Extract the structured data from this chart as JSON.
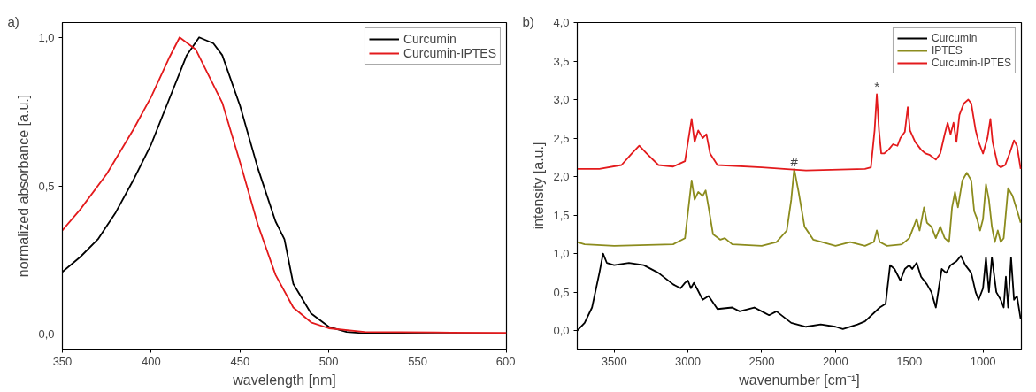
{
  "chart_data": [
    {
      "type": "line",
      "xlabel": "wavelength [nm]",
      "ylabel": "normalized absorbance [a.u.]",
      "annotations": [
        "a)"
      ],
      "xlim": [
        350,
        600
      ],
      "ylim": [
        -0.05,
        1.05
      ],
      "xticks": [
        350,
        400,
        450,
        500,
        550,
        600
      ],
      "yticks": [
        {
          "value": 0.0,
          "label": "0,0"
        },
        {
          "value": 0.5,
          "label": "0,5"
        },
        {
          "value": 1.0,
          "label": "1,0"
        }
      ],
      "grid": false,
      "legend": "top right",
      "series": [
        {
          "name": "Curcumin",
          "color": "#000000",
          "x": [
            350,
            360,
            370,
            380,
            390,
            400,
            410,
            420,
            427,
            435,
            440,
            450,
            460,
            470,
            475,
            480,
            490,
            500,
            510,
            520,
            560,
            600
          ],
          "values": [
            0.21,
            0.26,
            0.32,
            0.41,
            0.52,
            0.64,
            0.79,
            0.94,
            1.0,
            0.98,
            0.94,
            0.77,
            0.56,
            0.38,
            0.32,
            0.17,
            0.07,
            0.025,
            0.008,
            0.003,
            0.002,
            0.002
          ]
        },
        {
          "name": "Curcumin-IPTES",
          "color": "#e31a1c",
          "x": [
            350,
            360,
            375,
            390,
            400,
            410,
            416,
            425,
            440,
            450,
            460,
            470,
            480,
            490,
            500,
            520,
            560,
            600
          ],
          "values": [
            0.35,
            0.42,
            0.54,
            0.69,
            0.8,
            0.93,
            1.0,
            0.96,
            0.78,
            0.58,
            0.37,
            0.2,
            0.09,
            0.04,
            0.02,
            0.008,
            0.006,
            0.005
          ]
        }
      ]
    },
    {
      "type": "line",
      "xlabel": "wavenumber [cm⁻¹]",
      "ylabel": "intensity [a.u.]",
      "annotations": [
        "b)",
        {
          "text": "*",
          "x": 1720,
          "y": 3.07
        },
        {
          "text": "#",
          "x": 2280,
          "y": 2.1
        }
      ],
      "xlim": [
        3750,
        740
      ],
      "ylim": [
        -0.24,
        4.0
      ],
      "xticks": [
        3500,
        3000,
        2500,
        2000,
        1500,
        1000
      ],
      "yticks": [
        {
          "value": 0.0,
          "label": "0,0"
        },
        {
          "value": 0.5,
          "label": "0,5"
        },
        {
          "value": 1.0,
          "label": "1,0"
        },
        {
          "value": 1.5,
          "label": "1,5"
        },
        {
          "value": 2.0,
          "label": "2,0"
        },
        {
          "value": 2.5,
          "label": "2,5"
        },
        {
          "value": 3.0,
          "label": "3,0"
        },
        {
          "value": 3.5,
          "label": "3,5"
        },
        {
          "value": 4.0,
          "label": "4,0"
        }
      ],
      "grid": false,
      "legend": "top right",
      "series": [
        {
          "name": "Curcumin",
          "color": "#000000",
          "x": [
            3750,
            3700,
            3650,
            3600,
            3575,
            3550,
            3500,
            3400,
            3300,
            3200,
            3100,
            3050,
            3020,
            3000,
            2980,
            2960,
            2940,
            2900,
            2860,
            2800,
            2700,
            2650,
            2550,
            2500,
            2450,
            2400,
            2300,
            2200,
            2100,
            2000,
            1950,
            1850,
            1800,
            1700,
            1660,
            1630,
            1600,
            1560,
            1530,
            1500,
            1480,
            1450,
            1420,
            1380,
            1350,
            1320,
            1280,
            1250,
            1220,
            1180,
            1150,
            1120,
            1080,
            1050,
            1030,
            1000,
            980,
            960,
            940,
            910,
            880,
            860,
            845,
            830,
            810,
            790,
            770,
            745
          ],
          "values": [
            0.0,
            0.1,
            0.3,
            0.75,
            1.0,
            0.88,
            0.85,
            0.88,
            0.85,
            0.75,
            0.6,
            0.55,
            0.62,
            0.65,
            0.55,
            0.62,
            0.55,
            0.4,
            0.45,
            0.28,
            0.3,
            0.25,
            0.3,
            0.25,
            0.2,
            0.25,
            0.1,
            0.05,
            0.08,
            0.05,
            0.02,
            0.08,
            0.12,
            0.3,
            0.35,
            0.85,
            0.8,
            0.65,
            0.8,
            0.85,
            0.8,
            0.88,
            0.7,
            0.6,
            0.5,
            0.3,
            0.8,
            0.75,
            0.85,
            0.9,
            0.97,
            0.85,
            0.75,
            0.5,
            0.4,
            0.55,
            0.95,
            0.5,
            0.95,
            0.5,
            0.4,
            0.3,
            0.7,
            0.3,
            0.95,
            0.4,
            0.45,
            0.15
          ]
        },
        {
          "name": "IPTES",
          "color": "#8c8c1e",
          "x": [
            3750,
            3700,
            3500,
            3100,
            3020,
            2975,
            2955,
            2930,
            2900,
            2880,
            2860,
            2830,
            2780,
            2750,
            2700,
            2500,
            2400,
            2330,
            2300,
            2280,
            2250,
            2210,
            2150,
            2000,
            1900,
            1800,
            1740,
            1720,
            1700,
            1650,
            1550,
            1500,
            1470,
            1450,
            1430,
            1400,
            1380,
            1350,
            1320,
            1290,
            1260,
            1230,
            1210,
            1190,
            1170,
            1140,
            1110,
            1080,
            1060,
            1040,
            1020,
            1000,
            980,
            960,
            940,
            920,
            900,
            880,
            860,
            830,
            800,
            760,
            745
          ],
          "values": [
            1.15,
            1.12,
            1.1,
            1.12,
            1.2,
            1.95,
            1.7,
            1.8,
            1.75,
            1.82,
            1.6,
            1.25,
            1.18,
            1.2,
            1.12,
            1.1,
            1.15,
            1.3,
            1.7,
            2.1,
            1.8,
            1.35,
            1.18,
            1.1,
            1.15,
            1.1,
            1.15,
            1.3,
            1.15,
            1.1,
            1.12,
            1.2,
            1.35,
            1.45,
            1.3,
            1.6,
            1.4,
            1.35,
            1.2,
            1.35,
            1.2,
            1.15,
            1.6,
            1.8,
            1.6,
            1.95,
            2.05,
            1.95,
            1.55,
            1.45,
            1.3,
            1.45,
            1.9,
            1.7,
            1.35,
            1.15,
            1.3,
            1.15,
            1.2,
            1.85,
            1.75,
            1.5,
            1.4
          ]
        },
        {
          "name": "Curcumin-IPTES",
          "color": "#e31a1c",
          "x": [
            3750,
            3600,
            3450,
            3380,
            3330,
            3280,
            3200,
            3100,
            3020,
            2975,
            2955,
            2930,
            2900,
            2875,
            2850,
            2800,
            2500,
            2200,
            1800,
            1760,
            1735,
            1720,
            1705,
            1690,
            1670,
            1640,
            1610,
            1580,
            1560,
            1530,
            1510,
            1495,
            1460,
            1420,
            1390,
            1360,
            1320,
            1290,
            1260,
            1240,
            1220,
            1200,
            1180,
            1160,
            1130,
            1100,
            1080,
            1050,
            1030,
            1000,
            970,
            950,
            935,
            900,
            880,
            850,
            820,
            790,
            770,
            745
          ],
          "values": [
            2.1,
            2.1,
            2.15,
            2.3,
            2.4,
            2.3,
            2.15,
            2.13,
            2.2,
            2.75,
            2.45,
            2.6,
            2.5,
            2.55,
            2.3,
            2.15,
            2.12,
            2.08,
            2.1,
            2.12,
            2.6,
            3.07,
            2.6,
            2.3,
            2.3,
            2.35,
            2.42,
            2.4,
            2.5,
            2.58,
            2.9,
            2.6,
            2.45,
            2.35,
            2.3,
            2.28,
            2.22,
            2.3,
            2.55,
            2.7,
            2.55,
            2.7,
            2.45,
            2.8,
            2.95,
            3.0,
            2.95,
            2.6,
            2.45,
            2.3,
            2.5,
            2.75,
            2.45,
            2.15,
            2.12,
            2.15,
            2.3,
            2.47,
            2.4,
            2.1
          ]
        }
      ]
    }
  ]
}
